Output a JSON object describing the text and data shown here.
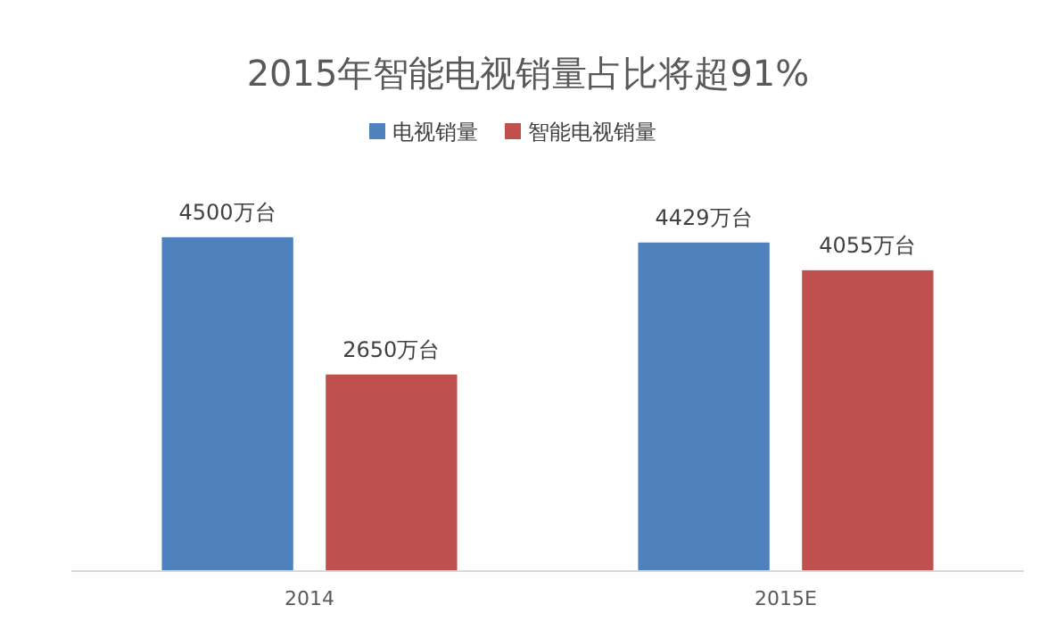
{
  "chart_data": {
    "type": "bar",
    "title": "2015年智能电视销量占比将超91%",
    "categories": [
      "2014",
      "2015E"
    ],
    "legend": "top",
    "series": [
      {
        "name": "电视销量",
        "color": "#4f81bd",
        "values": [
          4500,
          4429
        ],
        "value_labels": [
          "4500万台",
          "4429万台"
        ]
      },
      {
        "name": "智能电视销量",
        "color": "#c0504d",
        "values": [
          2650,
          4055
        ],
        "value_labels": [
          "2650万台",
          "4055万台"
        ]
      }
    ]
  }
}
